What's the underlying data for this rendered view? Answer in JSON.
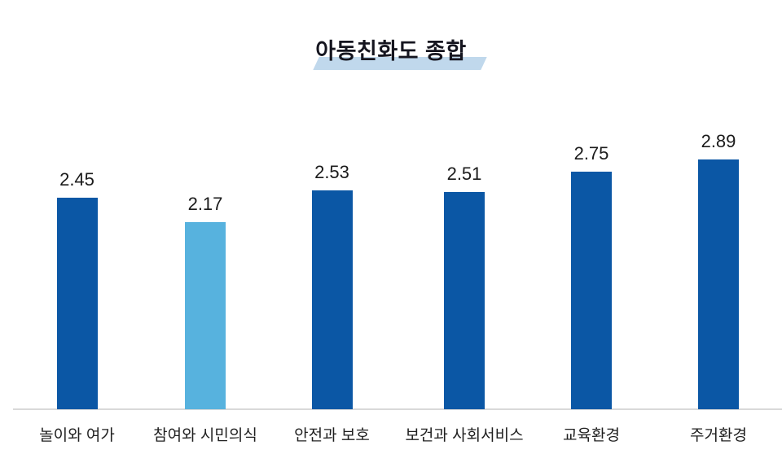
{
  "title": {
    "text": "아동친화도 종합"
  },
  "colors": {
    "background": "#ffffff",
    "bar_primary": "#0b57a5",
    "bar_highlight": "#57b2de",
    "title_band": "#c0d8ec",
    "title_text": "#15151f",
    "value_text": "#1b1b1b",
    "category_text": "#1f1f1f",
    "axis_line": "#d9d9d9"
  },
  "chart_data": {
    "type": "bar",
    "title": "아동친화도 종합",
    "categories": [
      "놀이와 여가",
      "참여와 시민의식",
      "안전과 보호",
      "보건과 사회서비스",
      "교육환경",
      "주거환경"
    ],
    "values": [
      2.45,
      2.17,
      2.53,
      2.51,
      2.75,
      2.89
    ],
    "value_labels": [
      "2.45",
      "2.17",
      "2.53",
      "2.51",
      "2.75",
      "2.89"
    ],
    "highlighted_index": 1,
    "xlabel": "",
    "ylabel": "",
    "ylim": [
      0,
      3
    ],
    "grid": false,
    "legend": false,
    "value_labels_position": "above-bars",
    "baseline_axis": "visible"
  }
}
